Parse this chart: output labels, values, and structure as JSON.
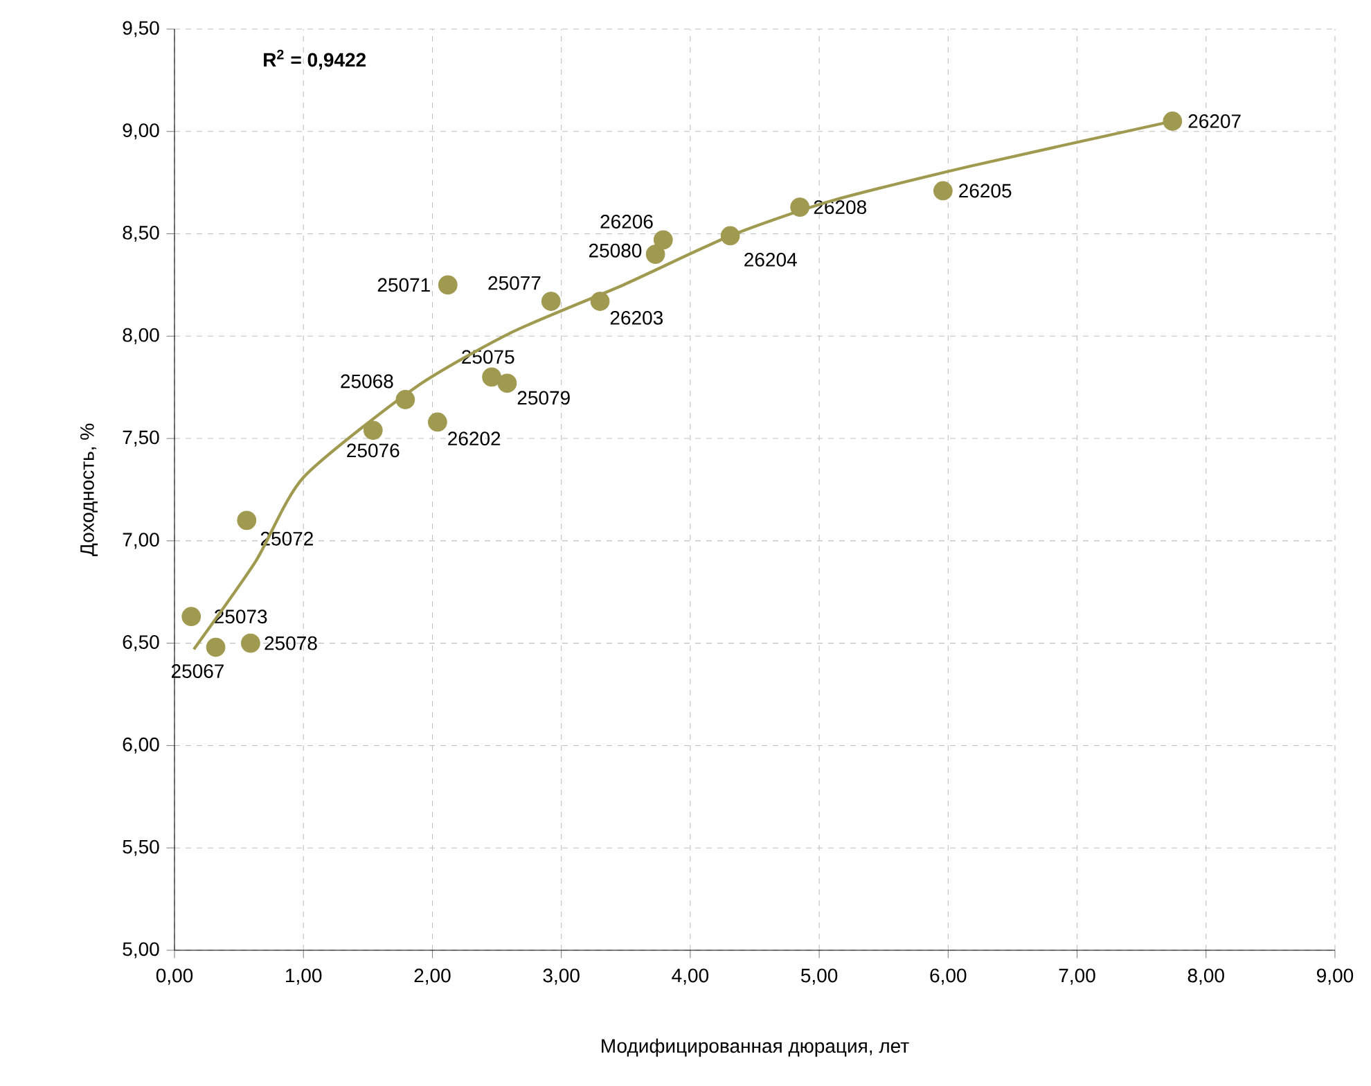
{
  "chart_data": {
    "type": "scatter",
    "xlabel": "Модифицированная дюрация, лет",
    "ylabel": "Доходность, %",
    "annotations": [
      "R$^{2}$ = 0,9422"
    ],
    "xlim": [
      0,
      9
    ],
    "ylim": [
      5,
      9.5
    ],
    "xticks": [
      {
        "value": 0,
        "label": "0,00"
      },
      {
        "value": 1,
        "label": "1,00"
      },
      {
        "value": 2,
        "label": "2,00"
      },
      {
        "value": 3,
        "label": "3,00"
      },
      {
        "value": 4,
        "label": "4,00"
      },
      {
        "value": 5,
        "label": "5,00"
      },
      {
        "value": 6,
        "label": "6,00"
      },
      {
        "value": 7,
        "label": "7,00"
      },
      {
        "value": 8,
        "label": "8,00"
      },
      {
        "value": 9,
        "label": "9,00"
      }
    ],
    "yticks": [
      {
        "value": 5,
        "label": "5,00"
      },
      {
        "value": 5.5,
        "label": "5,50"
      },
      {
        "value": 6,
        "label": "6,00"
      },
      {
        "value": 6.5,
        "label": "6,50"
      },
      {
        "value": 7,
        "label": "7,00"
      },
      {
        "value": 7.5,
        "label": "7,50"
      },
      {
        "value": 8,
        "label": "8,00"
      },
      {
        "value": 8.5,
        "label": "8,50"
      },
      {
        "value": 9,
        "label": "9,00"
      },
      {
        "value": 9.5,
        "label": "9,50"
      }
    ],
    "grid": true,
    "series": [
      {
        "type": "scatter",
        "name": "25073",
        "color": "#a09a50",
        "x": [
          0.13
        ],
        "values": [
          6.63
        ]
      },
      {
        "name": "25067",
        "color": "#a09a50",
        "x": [
          0.32
        ],
        "values": [
          6.48
        ]
      },
      {
        "name": "25078",
        "color": "#a09a50",
        "x": [
          0.59
        ],
        "values": [
          6.5
        ]
      },
      {
        "name": "25072",
        "color": "#a09a50",
        "x": [
          0.56
        ],
        "values": [
          7.1
        ]
      },
      {
        "name": "25076",
        "color": "#a09a50",
        "x": [
          1.54
        ],
        "values": [
          7.54
        ]
      },
      {
        "name": "25068",
        "color": "#a09a50",
        "x": [
          1.79
        ],
        "values": [
          7.69
        ]
      },
      {
        "name": "26202",
        "color": "#a09a50",
        "x": [
          2.04
        ],
        "values": [
          7.58
        ]
      },
      {
        "name": "25071",
        "color": "#a09a50",
        "x": [
          2.12
        ],
        "values": [
          8.25
        ]
      },
      {
        "name": "25075",
        "color": "#a09a50",
        "x": [
          2.46
        ],
        "values": [
          7.8
        ]
      },
      {
        "name": "25079",
        "color": "#a09a50",
        "x": [
          2.58
        ],
        "values": [
          7.77
        ]
      },
      {
        "name": "25077",
        "color": "#a09a50",
        "x": [
          2.92
        ],
        "values": [
          8.17
        ]
      },
      {
        "name": "26203",
        "color": "#a09a50",
        "x": [
          3.3
        ],
        "values": [
          8.17
        ]
      },
      {
        "name": "25080",
        "color": "#a09a50",
        "x": [
          3.73
        ],
        "values": [
          8.4
        ]
      },
      {
        "name": "26206",
        "color": "#a09a50",
        "x": [
          3.79
        ],
        "values": [
          8.47
        ]
      },
      {
        "name": "26204",
        "color": "#a09a50",
        "x": [
          4.31
        ],
        "values": [
          8.49
        ]
      },
      {
        "name": "26208",
        "color": "#a09a50",
        "x": [
          4.85
        ],
        "values": [
          8.63
        ]
      },
      {
        "name": "26205",
        "color": "#a09a50",
        "x": [
          5.96
        ],
        "values": [
          8.71
        ]
      },
      {
        "name": "26207",
        "color": "#a09a50",
        "x": [
          7.74
        ],
        "values": [
          9.05
        ]
      },
      {
        "type": "line",
        "color": "#a09a50",
        "x": [
          0.15,
          0.63,
          1.0,
          1.87,
          2.62,
          3.48,
          4.31,
          5.09,
          6.17,
          7.74
        ],
        "values": [
          6.47,
          6.9,
          7.31,
          7.75,
          8.02,
          8.25,
          8.49,
          8.66,
          8.83,
          9.05
        ]
      }
    ]
  }
}
